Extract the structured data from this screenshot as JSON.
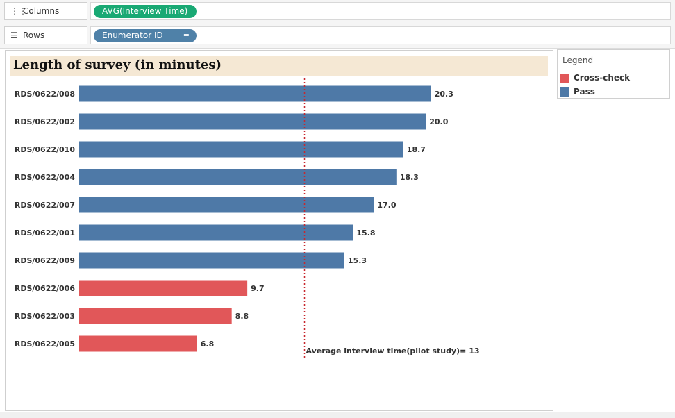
{
  "shelves": {
    "columns": {
      "label": "Columns",
      "icon": "columns-icon",
      "pill": "AVG(Interview Time)"
    },
    "rows": {
      "label": "Rows",
      "icon": "rows-icon",
      "pill": "Enumerator ID"
    }
  },
  "colors": {
    "pass": "#4e79a7",
    "cross_check": "#e15759",
    "columns_pill": "#19a974",
    "rows_pill": "#4f81a8",
    "title_bg": "#f5e8d4"
  },
  "legend": {
    "title": "Legend",
    "items": [
      {
        "label": "Cross-check",
        "color": "#e15759"
      },
      {
        "label": "Pass",
        "color": "#4e79a7"
      }
    ]
  },
  "chart_data": {
    "type": "bar",
    "orientation": "horizontal",
    "title": "Length of survey (in minutes)",
    "categories": [
      "RDS/0622/008",
      "RDS/0622/002",
      "RDS/0622/010",
      "RDS/0622/004",
      "RDS/0622/007",
      "RDS/0622/001",
      "RDS/0622/009",
      "RDS/0622/006",
      "RDS/0622/003",
      "RDS/0622/005"
    ],
    "values": [
      20.3,
      20.0,
      18.7,
      18.3,
      17.0,
      15.8,
      15.3,
      9.7,
      8.8,
      6.8
    ],
    "value_labels": [
      "20.3",
      "20.0",
      "18.7",
      "18.3",
      "17.0",
      "15.8",
      "15.3",
      "9.7",
      "8.8",
      "6.8"
    ],
    "status": [
      "Pass",
      "Pass",
      "Pass",
      "Pass",
      "Pass",
      "Pass",
      "Pass",
      "Cross-check",
      "Cross-check",
      "Cross-check"
    ],
    "xlim": [
      0,
      27
    ],
    "grid": false,
    "reference_line": {
      "value": 13,
      "label": "Average interview time(pilot study)= 13",
      "style": "dotted",
      "color": "#c8272d"
    },
    "legend_position": "right"
  }
}
